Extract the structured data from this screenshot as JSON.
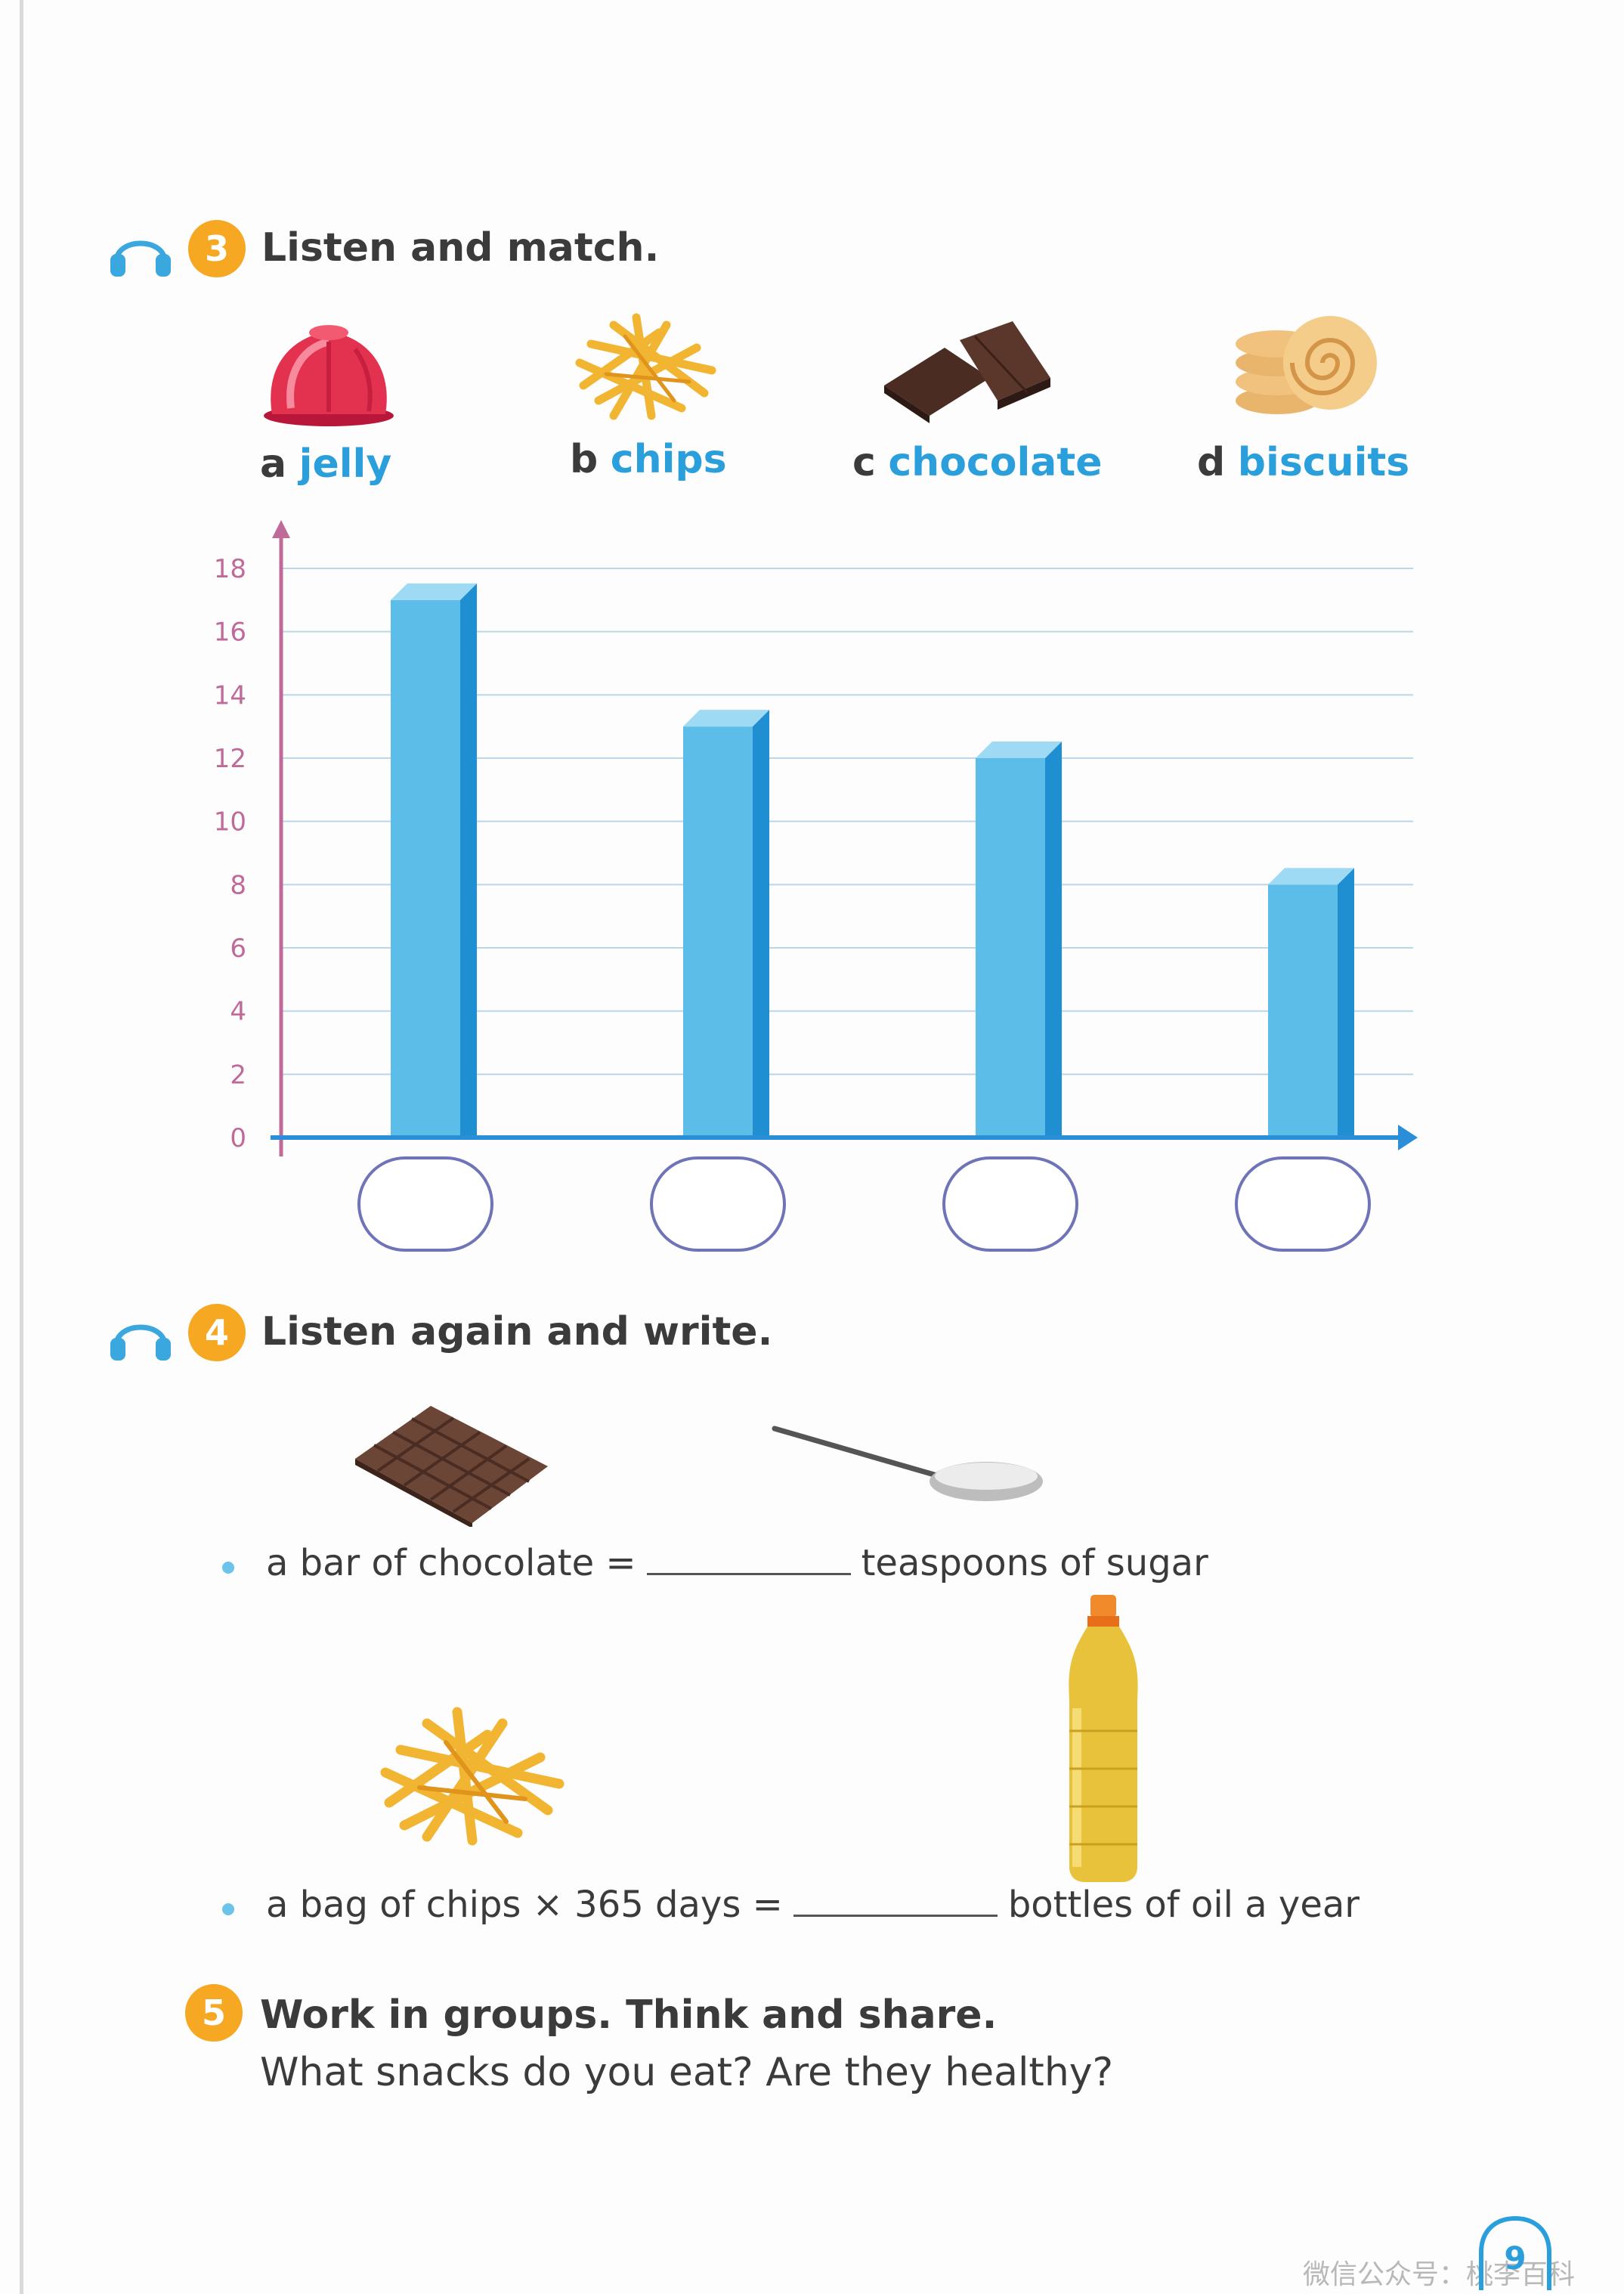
{
  "section3": {
    "number": "3",
    "title": "Listen and match.",
    "foods": [
      {
        "letter": "a",
        "word": "jelly"
      },
      {
        "letter": "b",
        "word": "chips"
      },
      {
        "letter": "c",
        "word": "chocolate"
      },
      {
        "letter": "d",
        "word": "biscuits"
      }
    ]
  },
  "chart_data": {
    "type": "bar",
    "categories": [
      "",
      "",
      "",
      ""
    ],
    "values": [
      17,
      13,
      12,
      8
    ],
    "y_ticks": [
      "0",
      "2",
      "4",
      "6",
      "8",
      "10",
      "12",
      "14",
      "16",
      "18"
    ],
    "ylim": [
      0,
      18
    ],
    "grid": true,
    "bar_color": "#5bbde8",
    "axis_color_x": "#2a8fd8",
    "axis_color_y": "#c06a9a"
  },
  "section4": {
    "number": "4",
    "title": "Listen again and write.",
    "line1": {
      "before": "a bar of chocolate =",
      "after": "teaspoons of sugar"
    },
    "line2": {
      "before": "a bag of chips × 365 days =",
      "after": "bottles of oil a year"
    }
  },
  "section5": {
    "number": "5",
    "title": "Work in groups. Think and share.",
    "subtitle": "What snacks do you eat? Are they healthy?"
  },
  "page_number": "9",
  "watermark": "微信公众号：桃李百科",
  "icons": {
    "audio": "headphones-icon",
    "badge": "number-badge-icon"
  },
  "colors": {
    "badge": "#f7a823",
    "accent_blue": "#2a9fdc"
  }
}
